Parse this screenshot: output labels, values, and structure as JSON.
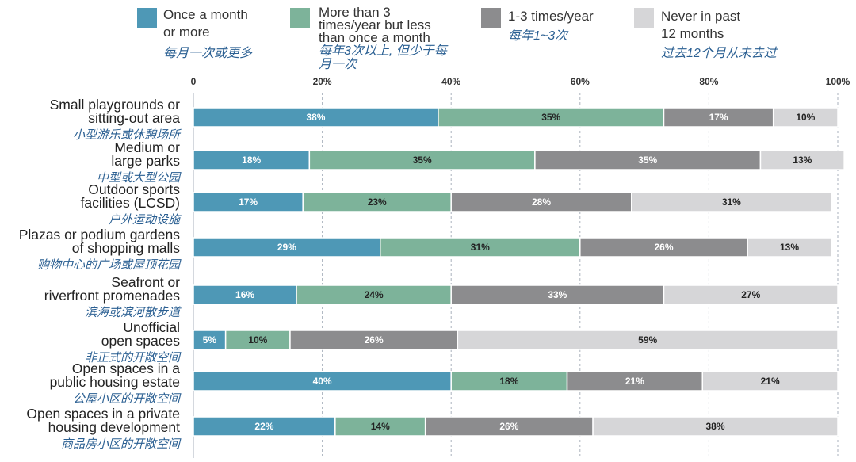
{
  "colors": {
    "once_month": "#4e98b6",
    "more_than_3": "#7db39a",
    "one_to_three": "#8c8c8e",
    "never": "#d6d6d8",
    "zh_text": "#2a5f92",
    "grid": "#aab2bd"
  },
  "legend": [
    {
      "en_lines": [
        "Once a month",
        "or more"
      ],
      "zh_lines": [
        "每月一次或更多"
      ]
    },
    {
      "en_lines": [
        "More than 3",
        "times/year but less",
        "than once a month"
      ],
      "zh_lines": [
        "每年3次以上, 但少于每",
        "月一次"
      ]
    },
    {
      "en_lines": [
        "1-3 times/year"
      ],
      "zh_lines": [
        "每年1~3次"
      ]
    },
    {
      "en_lines": [
        "Never in past",
        "12 months"
      ],
      "zh_lines": [
        "过去12个月从未去过"
      ]
    }
  ],
  "chart_data": {
    "type": "bar",
    "orientation": "horizontal",
    "stacked": true,
    "percent": true,
    "xlim": [
      0,
      100
    ],
    "xticks": [
      "0",
      "20%",
      "40%",
      "60%",
      "80%",
      "100%"
    ],
    "grid": true,
    "legend_position": "top",
    "categories": [
      {
        "en": [
          "Small playgrounds or",
          "sitting-out area"
        ],
        "zh": "小型游乐或休憩场所"
      },
      {
        "en": [
          "Medium or",
          "large parks"
        ],
        "zh": "中型或大型公园"
      },
      {
        "en": [
          "Outdoor sports",
          "facilities (LCSD)"
        ],
        "zh": "户外运动设施"
      },
      {
        "en": [
          "Plazas or podium gardens",
          "of shopping malls"
        ],
        "zh": "购物中心的广场或屋顶花园"
      },
      {
        "en": [
          "Seafront or",
          "riverfront promenades"
        ],
        "zh": "滨海或滨河散步道"
      },
      {
        "en": [
          "Unofficial",
          "open spaces"
        ],
        "zh": "非正式的开敞空间"
      },
      {
        "en": [
          "Open spaces in a",
          "public housing estate"
        ],
        "zh": "公屋小区的开敞空间"
      },
      {
        "en": [
          "Open spaces in a private",
          "housing development"
        ],
        "zh": "商品房小区的开敞空间"
      }
    ],
    "series": [
      {
        "name": "Once a month or more",
        "color_key": "once_month",
        "label_color": "#ffffff",
        "values": [
          38,
          18,
          17,
          29,
          16,
          5,
          40,
          22
        ],
        "labels": [
          "38%",
          "18%",
          "17%",
          "29%",
          "16%",
          "5%",
          "40%",
          "22%"
        ]
      },
      {
        "name": "More than 3 times/year but less than once a month",
        "color_key": "more_than_3",
        "label_color": "#222222",
        "values": [
          35,
          35,
          23,
          31,
          24,
          10,
          18,
          14
        ],
        "labels": [
          "35%",
          "35%",
          "23%",
          "31%",
          "24%",
          "10%",
          "18%",
          "14%"
        ]
      },
      {
        "name": "1-3 times/year",
        "color_key": "one_to_three",
        "label_color": "#ffffff",
        "values": [
          17,
          35,
          28,
          26,
          33,
          26,
          21,
          26
        ],
        "labels": [
          "17%",
          "35%",
          "28%",
          "26%",
          "33%",
          "26%",
          "21%",
          "26%"
        ]
      },
      {
        "name": "Never in past 12 months",
        "color_key": "never",
        "label_color": "#222222",
        "values": [
          10,
          13,
          31,
          13,
          27,
          59,
          21,
          38
        ],
        "labels": [
          "10%",
          "13%",
          "31%",
          "13%",
          "27%",
          "59%",
          "21%",
          "38%"
        ]
      }
    ]
  }
}
